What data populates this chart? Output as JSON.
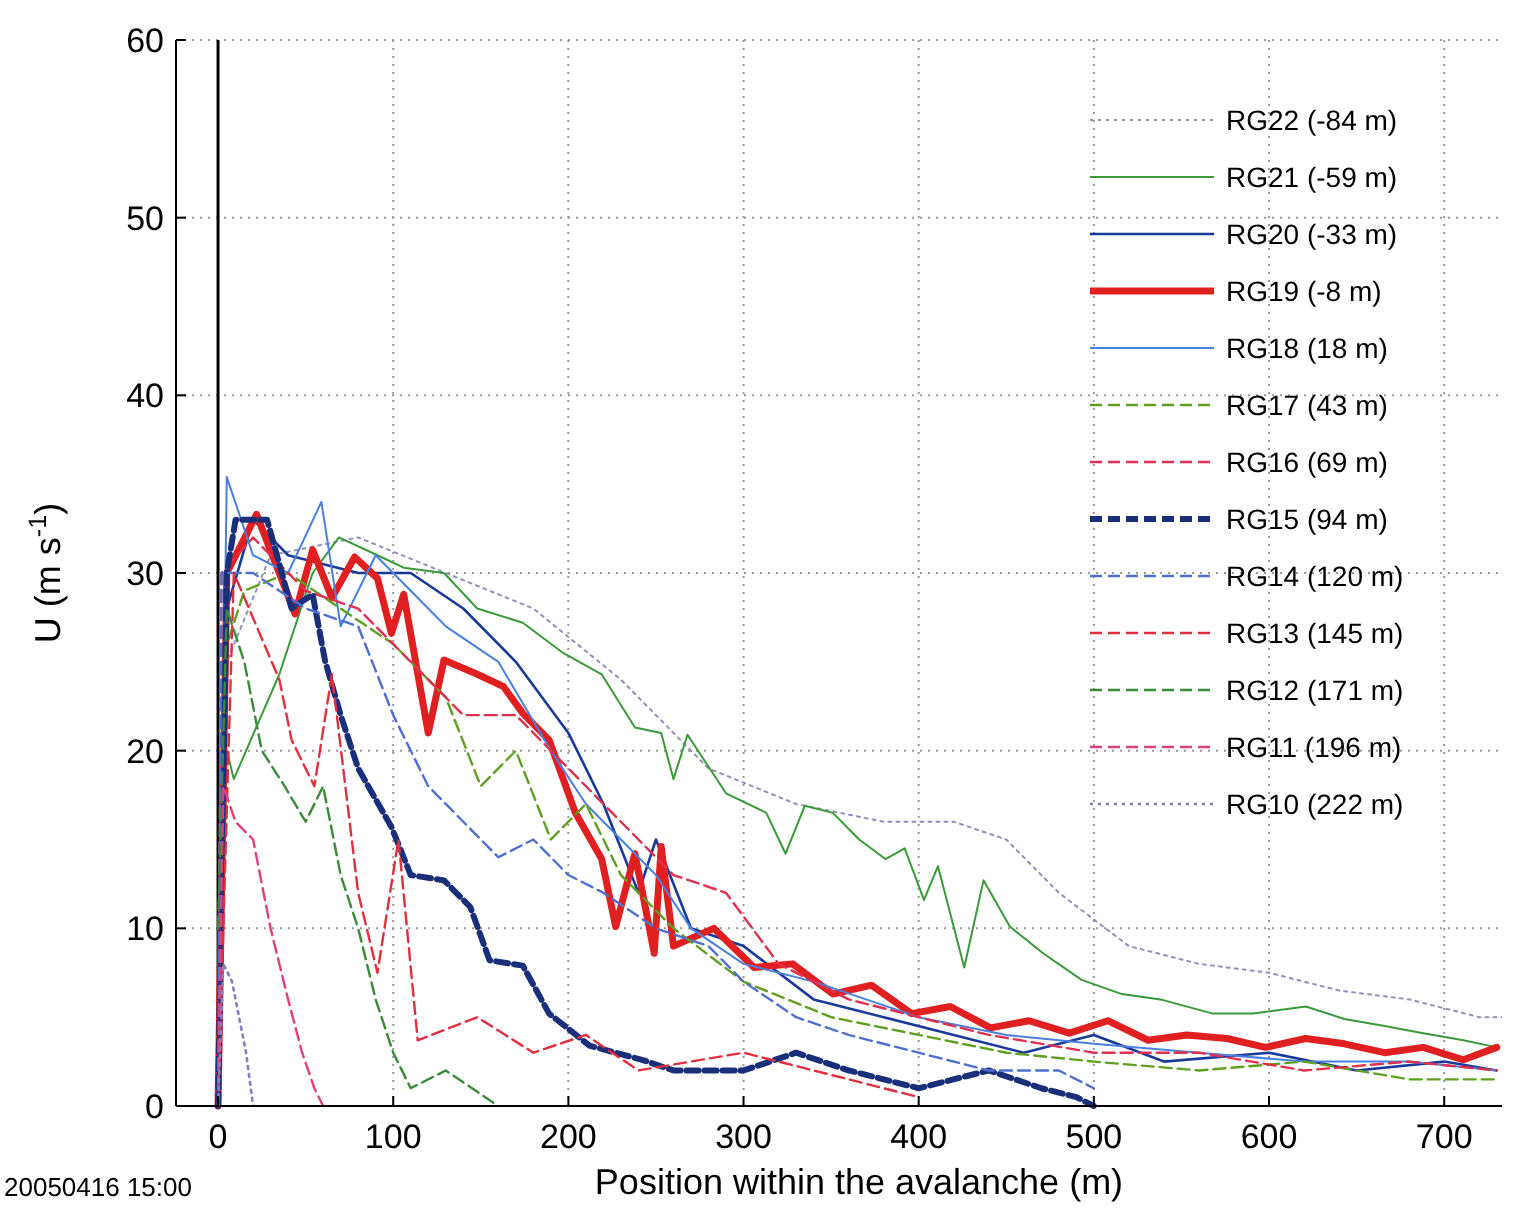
{
  "chart_data": {
    "type": "line",
    "xlabel": "Position within the avalanche (m)",
    "ylabel": "U (m s$^{-1}$)",
    "xlim": [
      -24,
      733
    ],
    "ylim": [
      0,
      60
    ],
    "xticks": [
      0,
      100,
      200,
      300,
      400,
      500,
      600,
      700
    ],
    "yticks": [
      0,
      10,
      20,
      30,
      40,
      50,
      60
    ],
    "grid": true,
    "legend": "top right",
    "marker": "none",
    "annotations": [
      "20050416 15:00"
    ],
    "ref_lines": [
      {
        "axis": "x",
        "value": 0,
        "color": "#000000"
      }
    ],
    "series": [
      {
        "name": "RG22 (-84 m)",
        "color": "#9090b8",
        "line_style": "dotted",
        "x": [
          0,
          5,
          30,
          80,
          130,
          180,
          230,
          280,
          330,
          380,
          420,
          450,
          480,
          520,
          560,
          600,
          640,
          680,
          720,
          733
        ],
        "values": [
          0,
          25,
          31,
          32,
          30,
          28,
          24,
          19,
          17,
          16,
          16,
          15,
          12,
          9,
          8,
          7.5,
          6.5,
          6,
          5,
          5
        ]
      },
      {
        "name": "RG21 (-59 m)",
        "color": "#3a9a3a",
        "line_style": "solid",
        "x": [
          0,
          5,
          9,
          35,
          54,
          69,
          91,
          106,
          129,
          148,
          174,
          197,
          219,
          238,
          253,
          260,
          268,
          290,
          313,
          324,
          335,
          351,
          366,
          381,
          392,
          403,
          411,
          426,
          437,
          452,
          471,
          493,
          516,
          538,
          568,
          591,
          621,
          643,
          666,
          688,
          711,
          730
        ],
        "values": [
          0,
          20,
          18.4,
          24.3,
          30,
          32,
          31,
          30.3,
          30,
          28,
          27.2,
          25.5,
          24.3,
          21.3,
          21,
          18.4,
          20.9,
          17.6,
          16.5,
          14.2,
          16.9,
          16.5,
          15,
          13.9,
          14.5,
          11.6,
          13.5,
          7.8,
          12.7,
          10.1,
          8.6,
          7.1,
          6.3,
          6,
          5.2,
          5.2,
          5.6,
          4.9,
          4.5,
          4.1,
          3.7,
          3.3
        ]
      },
      {
        "name": "RG20 (-33 m)",
        "color": "#1a3a9a",
        "line_style": "solid",
        "x": [
          0,
          5,
          20,
          40,
          80,
          110,
          140,
          170,
          200,
          220,
          240,
          250,
          270,
          300,
          340,
          380,
          420,
          460,
          500,
          540,
          600,
          650,
          700,
          730
        ],
        "values": [
          0,
          28,
          33,
          31,
          30,
          30,
          28,
          25,
          21,
          17,
          12,
          15,
          10,
          9,
          6,
          5,
          4,
          3,
          4,
          2.5,
          3,
          2,
          2.5,
          2
        ]
      },
      {
        "name": "RG19 (-8 m)",
        "color": "#e02020",
        "line_style": "solid",
        "x": [
          0,
          5,
          22,
          44,
          54,
          65,
          78,
          91,
          99,
          106,
          120,
          129,
          148,
          163,
          174,
          189,
          204,
          219,
          227,
          238,
          249,
          253,
          260,
          283,
          306,
          328,
          351,
          373,
          396,
          418,
          441,
          463,
          486,
          508,
          531,
          553,
          576,
          598,
          621,
          643,
          666,
          688,
          711,
          730
        ],
        "values": [
          0,
          30,
          33.3,
          27.7,
          31.3,
          28.6,
          30.9,
          29.7,
          26.6,
          28.8,
          21,
          25.1,
          24.3,
          23.6,
          22.1,
          20.6,
          16.5,
          13.9,
          10.1,
          14.2,
          8.6,
          14.6,
          9,
          10,
          7.8,
          8,
          6.3,
          6.8,
          5.2,
          5.6,
          4.4,
          4.8,
          4.1,
          4.8,
          3.7,
          4,
          3.8,
          3.3,
          3.8,
          3.5,
          3,
          3.3,
          2.6,
          3.3
        ]
      },
      {
        "name": "RG18 (18 m)",
        "color": "#4a80e0",
        "line_style": "solid",
        "x": [
          0,
          5,
          20,
          40,
          59,
          70,
          90,
          110,
          130,
          160,
          190,
          210,
          230,
          250,
          270,
          300,
          340,
          400,
          450,
          500,
          560,
          620,
          680,
          730
        ],
        "values": [
          0,
          35.4,
          31,
          30,
          34,
          27,
          31,
          29,
          27,
          25,
          20,
          17,
          15,
          13,
          10,
          8,
          7,
          5,
          4,
          3.5,
          3,
          2.5,
          2.5,
          2
        ]
      },
      {
        "name": "RG17 (43 m)",
        "color": "#60a020",
        "line_style": "dashed",
        "x": [
          0,
          2,
          15,
          40,
          70,
          100,
          130,
          150,
          170,
          190,
          210,
          230,
          260,
          300,
          350,
          400,
          450,
          500,
          560,
          620,
          680,
          730
        ],
        "values": [
          0,
          25,
          29,
          30,
          28,
          26,
          23,
          18,
          20,
          15,
          17,
          13,
          10,
          7,
          5,
          4,
          3,
          2.5,
          2,
          2.5,
          1.5,
          1.5
        ]
      },
      {
        "name": "RG16 (69 m)",
        "color": "#e03050",
        "line_style": "dashed",
        "x": [
          0,
          2,
          20,
          50,
          80,
          110,
          140,
          170,
          200,
          230,
          260,
          290,
          320,
          360,
          400,
          440,
          500,
          560,
          620,
          680,
          730
        ],
        "values": [
          0,
          30,
          32,
          29,
          28,
          25,
          22,
          22,
          19,
          16,
          13,
          12,
          8,
          6,
          5,
          4,
          3,
          3,
          2,
          2.5,
          2
        ]
      },
      {
        "name": "RG15 (94 m)",
        "color": "#1a2f7a",
        "line_style": "dashed",
        "x": [
          0,
          5,
          10,
          28,
          42,
          54,
          61,
          70,
          80,
          99,
          110,
          129,
          144,
          155,
          174,
          189,
          212,
          242,
          260,
          300,
          330,
          360,
          400,
          440,
          470,
          490,
          500
        ],
        "values": [
          0,
          30,
          33,
          33,
          28,
          28.8,
          25.1,
          22,
          19,
          15.7,
          13,
          12.7,
          11.2,
          8.2,
          7.9,
          5.2,
          3.4,
          2.6,
          2,
          2,
          3,
          2,
          1,
          2,
          1,
          0.5,
          0
        ]
      },
      {
        "name": "RG14 (120 m)",
        "color": "#5070d0",
        "line_style": "dashed",
        "x": [
          0,
          2,
          20,
          50,
          80,
          100,
          120,
          140,
          160,
          180,
          200,
          220,
          250,
          280,
          300,
          330,
          360,
          400,
          440,
          480,
          500
        ],
        "values": [
          0,
          30,
          30,
          28,
          27,
          22,
          18,
          16,
          14,
          15,
          13,
          12,
          10,
          9,
          7,
          5,
          4,
          3,
          2,
          2,
          1
        ]
      },
      {
        "name": "RG13 (145 m)",
        "color": "#e03040",
        "line_style": "dashed",
        "x": [
          0,
          9,
          35,
          42,
          55,
          65,
          80,
          91,
          103,
          114,
          148,
          180,
          210,
          240,
          300,
          380,
          400
        ],
        "values": [
          0,
          30,
          24,
          20.6,
          18,
          24.3,
          12,
          7.5,
          15,
          3.7,
          5,
          3,
          4,
          2,
          3,
          1,
          0.5
        ]
      },
      {
        "name": "RG12 (171 m)",
        "color": "#3a8a3a",
        "line_style": "dashed",
        "x": [
          0,
          5,
          15,
          25,
          38,
          50,
          60,
          70,
          80,
          90,
          100,
          110,
          130,
          145,
          160
        ],
        "values": [
          10,
          28,
          25,
          20,
          18,
          16,
          18,
          13,
          10,
          6,
          3,
          1,
          2,
          1,
          0
        ]
      },
      {
        "name": "RG11 (196 m)",
        "color": "#e04080",
        "line_style": "dashed",
        "x": [
          0,
          3,
          10,
          20,
          30,
          40,
          48,
          55,
          60
        ],
        "values": [
          0,
          18,
          16,
          15,
          10,
          6,
          3,
          1,
          0
        ]
      },
      {
        "name": "RG10 (222 m)",
        "color": "#8080c0",
        "line_style": "dotted",
        "x": [
          0,
          3,
          8,
          12,
          16,
          20
        ],
        "values": [
          0,
          8,
          7,
          5,
          3,
          0
        ]
      }
    ]
  }
}
